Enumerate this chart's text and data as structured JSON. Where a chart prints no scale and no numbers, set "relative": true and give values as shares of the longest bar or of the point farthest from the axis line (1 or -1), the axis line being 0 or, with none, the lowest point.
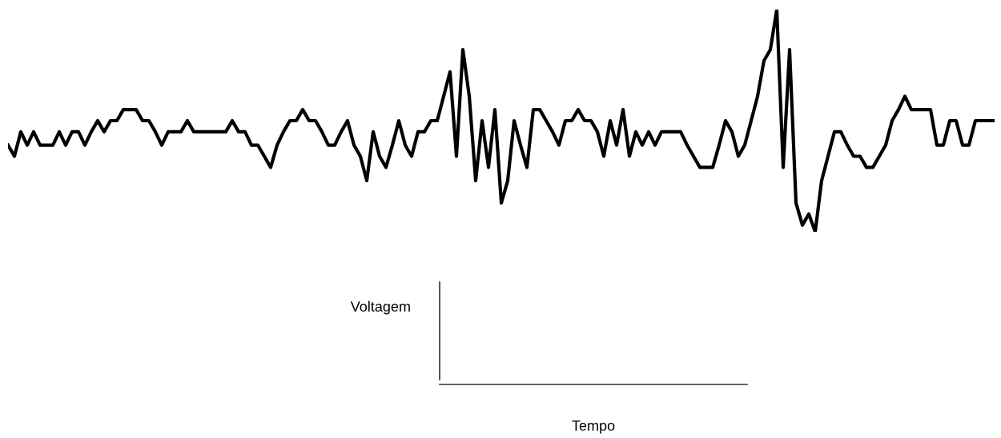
{
  "chart_data": {
    "type": "line",
    "relative": true,
    "annotations": [
      "Voltagem",
      "Tempo"
    ],
    "legend": false,
    "marker": "none",
    "line_style": "solid",
    "categories": [
      null,
      null,
      null,
      null,
      null,
      null,
      null,
      null,
      null,
      null,
      null,
      null,
      null,
      null,
      null,
      null,
      null,
      null,
      null,
      null,
      null,
      null,
      null,
      null,
      null,
      null,
      null,
      null,
      null,
      null,
      null,
      null,
      null,
      null,
      null,
      null,
      null,
      null,
      null,
      null,
      null,
      null,
      null,
      null,
      null,
      null,
      null,
      null,
      null,
      null,
      null,
      null,
      null,
      null,
      null,
      null,
      null,
      null,
      null,
      null,
      null,
      null,
      null,
      null,
      null,
      null,
      null,
      null,
      null,
      null,
      null,
      null,
      null,
      null,
      null,
      null,
      null,
      null,
      null,
      null,
      null,
      null,
      null,
      null,
      null,
      null,
      null,
      null,
      null,
      null,
      null,
      null,
      null,
      null,
      null,
      null,
      null,
      null,
      null,
      null,
      null,
      null,
      null,
      null,
      null,
      null,
      null,
      null,
      null,
      null,
      null,
      null,
      null,
      null,
      null,
      null,
      null,
      null,
      null,
      null,
      null,
      null,
      null,
      null,
      null,
      null,
      null,
      null,
      null,
      null,
      null,
      null,
      null,
      null,
      null,
      null,
      null,
      null,
      null,
      null,
      null,
      null,
      null,
      null,
      null,
      null,
      null,
      null,
      null,
      null,
      null,
      null,
      null,
      null,
      null
    ],
    "series": [
      {
        "color": "#000000",
        "values": [
          0.39,
          0.34,
          0.45,
          0.39,
          0.45,
          0.39,
          0.39,
          0.39,
          0.45,
          0.39,
          0.45,
          0.45,
          0.39,
          0.45,
          0.5,
          0.45,
          0.5,
          0.5,
          0.55,
          0.55,
          0.55,
          0.5,
          0.5,
          0.45,
          0.39,
          0.45,
          0.45,
          0.45,
          0.5,
          0.45,
          0.45,
          0.45,
          0.45,
          0.45,
          0.45,
          0.5,
          0.45,
          0.45,
          0.39,
          0.39,
          0.34,
          0.29,
          0.39,
          0.45,
          0.5,
          0.5,
          0.55,
          0.5,
          0.5,
          0.45,
          0.39,
          0.39,
          0.45,
          0.5,
          0.39,
          0.34,
          0.23,
          0.45,
          0.34,
          0.29,
          0.39,
          0.5,
          0.39,
          0.34,
          0.45,
          0.45,
          0.5,
          0.5,
          0.61,
          0.72,
          0.34,
          0.82,
          0.61,
          0.23,
          0.5,
          0.29,
          0.55,
          0.13,
          0.23,
          0.5,
          0.39,
          0.29,
          0.55,
          0.55,
          0.5,
          0.45,
          0.39,
          0.5,
          0.5,
          0.55,
          0.5,
          0.5,
          0.45,
          0.34,
          0.5,
          0.39,
          0.55,
          0.34,
          0.45,
          0.39,
          0.45,
          0.39,
          0.45,
          0.45,
          0.45,
          0.45,
          0.39,
          0.34,
          0.29,
          0.29,
          0.29,
          0.39,
          0.5,
          0.45,
          0.34,
          0.39,
          0.5,
          0.61,
          0.77,
          0.82,
          1,
          0.29,
          0.82,
          0.13,
          0.03,
          0.08,
          0,
          0.23,
          0.34,
          0.45,
          0.45,
          0.39,
          0.34,
          0.34,
          0.29,
          0.29,
          0.34,
          0.39,
          0.5,
          0.55,
          0.61,
          0.55,
          0.55,
          0.55,
          0.55,
          0.39,
          0.39,
          0.5,
          0.5,
          0.39,
          0.39,
          0.5,
          0.5,
          0.5,
          0.5
        ]
      }
    ]
  }
}
